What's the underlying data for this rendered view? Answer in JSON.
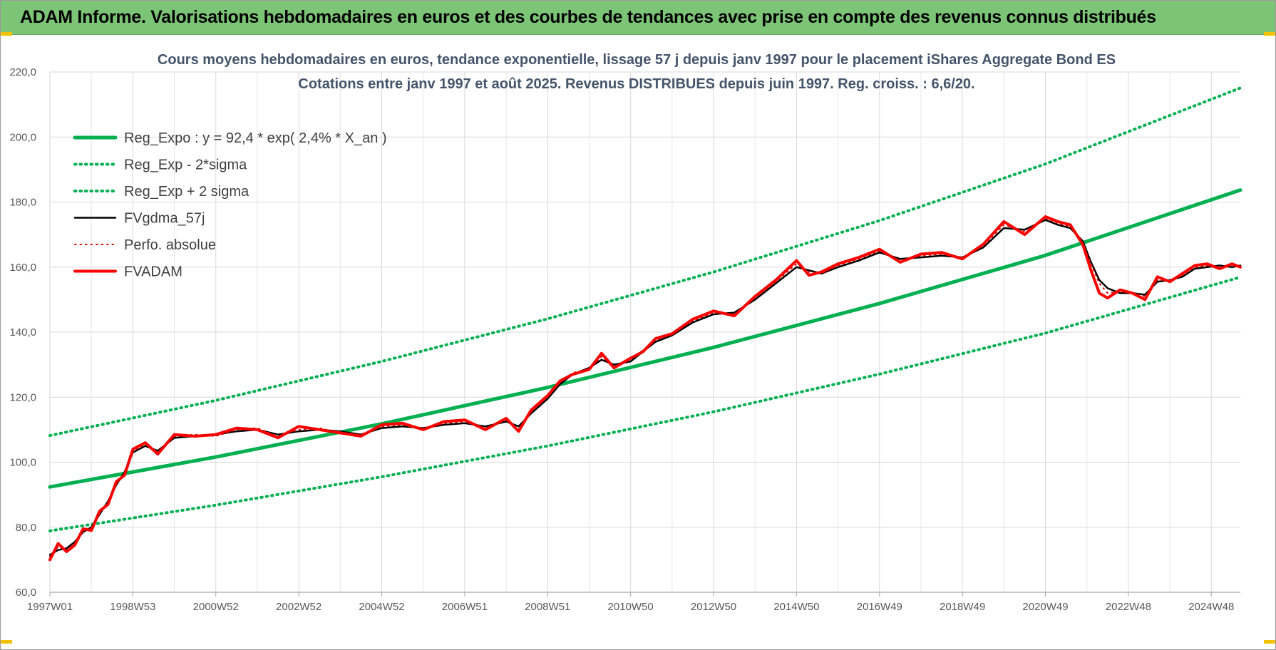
{
  "banner": {
    "title": "ADAM Informe. Valorisations hebdomadaires en euros et des courbes de tendances avec prise en compte des revenus connus distribués",
    "color": "#7cc576"
  },
  "chart_data": {
    "type": "line",
    "title": "Cours moyens hebdomadaires en euros, tendance exponentielle, lissage 57 j depuis janv 1997  pour le placement iShares Aggregate Bond ES",
    "subtitle": "Cotations entre janv 1997 et août 2025. Revenus DISTRIBUES depuis juin 1997.  Reg. croiss. : 6,6/20.",
    "x_range": [
      1997.0,
      2025.7
    ],
    "ylim": [
      60,
      220
    ],
    "y_ticks": [
      60,
      80,
      100,
      120,
      140,
      160,
      180,
      200,
      220
    ],
    "y_tick_labels": [
      "60,0",
      "80,0",
      "100,0",
      "120,0",
      "140,0",
      "160,0",
      "180,0",
      "200,0",
      "220,0"
    ],
    "x_tick_labels": [
      "1997W01",
      "1998W53",
      "2000W52",
      "2002W52",
      "2004W52",
      "2006W51",
      "2008W51",
      "2010W50",
      "2012W50",
      "2014W50",
      "2016W49",
      "2018W49",
      "2020W49",
      "2022W48",
      "2024W48"
    ],
    "x_tick_positions": [
      1997.0,
      1999.0,
      2001.0,
      2003.0,
      2005.0,
      2007.0,
      2009.0,
      2011.0,
      2013.0,
      2015.0,
      2017.0,
      2019.0,
      2021.0,
      2023.0,
      2025.0
    ],
    "grid": true,
    "legend_position": "top-left",
    "regression": {
      "a": 92.4,
      "rate": 0.024,
      "x0": 1997.0
    },
    "series": [
      {
        "name": "Reg_Expo : y = 92,4 * exp( 2,4% *  X_an )",
        "color": "#00b050",
        "style": "solid",
        "width": 5,
        "x": [
          1997.0,
          2001.0,
          2005.0,
          2009.0,
          2013.0,
          2017.0,
          2021.0,
          2025.7
        ],
        "values": [
          92.4,
          101.6,
          111.8,
          123.0,
          135.3,
          148.8,
          163.6,
          183.7
        ]
      },
      {
        "name": "Reg_Exp - 2*sigma",
        "color": "#00b050",
        "style": "dotted",
        "width": 4,
        "x": [
          1997.0,
          2001.0,
          2005.0,
          2009.0,
          2013.0,
          2017.0,
          2021.0,
          2025.7
        ],
        "values": [
          78.9,
          86.8,
          95.5,
          105.0,
          115.5,
          127.1,
          139.7,
          156.9
        ]
      },
      {
        "name": "Reg_Exp + 2 sigma",
        "color": "#00b050",
        "style": "dotted",
        "width": 4,
        "x": [
          1997.0,
          2001.0,
          2005.0,
          2009.0,
          2013.0,
          2017.0,
          2021.0,
          2025.7
        ],
        "values": [
          108.2,
          119.0,
          131.0,
          144.1,
          158.5,
          174.3,
          191.7,
          215.1
        ]
      },
      {
        "name": "FVgdma_57j",
        "color": "#000000",
        "style": "solid",
        "width": 2.5,
        "x": [
          1997.0,
          1997.2,
          1997.4,
          1997.6,
          1997.8,
          1998.0,
          1998.2,
          1998.4,
          1998.6,
          1998.8,
          1999.0,
          1999.3,
          1999.6,
          2000.0,
          2000.5,
          2001.0,
          2001.5,
          2002.0,
          2002.5,
          2003.0,
          2003.5,
          2004.0,
          2004.5,
          2005.0,
          2005.5,
          2006.0,
          2006.5,
          2007.0,
          2007.5,
          2008.0,
          2008.3,
          2008.6,
          2009.0,
          2009.3,
          2009.6,
          2010.0,
          2010.3,
          2010.6,
          2011.0,
          2011.3,
          2011.6,
          2012.0,
          2012.5,
          2013.0,
          2013.5,
          2014.0,
          2014.5,
          2015.0,
          2015.3,
          2015.6,
          2016.0,
          2016.5,
          2017.0,
          2017.5,
          2018.0,
          2018.5,
          2019.0,
          2019.5,
          2020.0,
          2020.5,
          2021.0,
          2021.3,
          2021.6,
          2021.9,
          2022.1,
          2022.3,
          2022.5,
          2022.8,
          2023.1,
          2023.4,
          2023.7,
          2024.0,
          2024.3,
          2024.6,
          2024.9,
          2025.2,
          2025.5,
          2025.7
        ],
        "values": [
          71.5,
          73.0,
          73.5,
          75.5,
          78.5,
          80.0,
          84.0,
          88.0,
          93.0,
          97.0,
          103.0,
          105.0,
          103.5,
          107.5,
          108.0,
          108.5,
          109.5,
          110.0,
          108.5,
          109.5,
          110.0,
          109.5,
          108.5,
          110.5,
          111.0,
          110.5,
          111.5,
          112.0,
          111.0,
          112.5,
          111.0,
          115.0,
          119.5,
          124.0,
          127.0,
          129.0,
          131.5,
          130.0,
          131.0,
          134.0,
          137.0,
          139.0,
          143.0,
          145.5,
          146.0,
          150.0,
          155.0,
          160.0,
          159.0,
          158.0,
          160.0,
          162.0,
          164.5,
          162.5,
          163.0,
          163.5,
          163.0,
          166.0,
          172.0,
          171.5,
          174.5,
          173.0,
          172.0,
          168.0,
          161.5,
          156.0,
          153.5,
          152.0,
          152.0,
          151.5,
          155.5,
          156.0,
          157.0,
          159.5,
          160.0,
          160.5,
          160.0,
          160.5
        ]
      },
      {
        "name": "Perfo. absolue",
        "color": "#e00000",
        "style": "dotted",
        "width": 2,
        "x": [
          1997.0,
          1997.2,
          1997.4,
          1997.6,
          1997.8,
          1998.0,
          1998.2,
          1998.4,
          1998.6,
          1998.8,
          1999.0,
          1999.3,
          1999.6,
          2000.0,
          2000.5,
          2001.0,
          2001.5,
          2002.0,
          2002.5,
          2003.0,
          2003.5,
          2004.0,
          2004.5,
          2005.0,
          2005.5,
          2006.0,
          2006.5,
          2007.0,
          2007.5,
          2008.0,
          2008.3,
          2008.6,
          2009.0,
          2009.3,
          2009.6,
          2010.0,
          2010.3,
          2010.6,
          2011.0,
          2011.3,
          2011.6,
          2012.0,
          2012.5,
          2013.0,
          2013.5,
          2014.0,
          2014.5,
          2015.0,
          2015.3,
          2015.6,
          2016.0,
          2016.5,
          2017.0,
          2017.5,
          2018.0,
          2018.5,
          2019.0,
          2019.5,
          2020.0,
          2020.5,
          2021.0,
          2021.3,
          2021.6,
          2021.9,
          2022.1,
          2022.3,
          2022.5,
          2022.8,
          2023.1,
          2023.4,
          2023.7,
          2024.0,
          2024.3,
          2024.6,
          2024.9,
          2025.2,
          2025.5,
          2025.7
        ],
        "values": [
          71.0,
          74.0,
          73.0,
          75.0,
          79.0,
          79.5,
          84.5,
          87.5,
          93.5,
          96.5,
          103.5,
          105.5,
          103.0,
          108.0,
          108.5,
          108.0,
          110.0,
          110.5,
          108.0,
          110.0,
          110.5,
          109.0,
          108.5,
          111.0,
          111.5,
          110.0,
          112.0,
          112.5,
          110.5,
          113.0,
          110.0,
          115.5,
          120.0,
          124.5,
          127.5,
          128.5,
          132.5,
          129.5,
          131.5,
          134.5,
          137.5,
          139.5,
          143.5,
          146.0,
          145.5,
          150.5,
          155.5,
          161.0,
          158.5,
          158.0,
          160.5,
          162.5,
          165.0,
          162.0,
          163.5,
          164.0,
          163.0,
          166.5,
          173.0,
          171.0,
          175.0,
          173.5,
          172.5,
          167.5,
          161.0,
          155.0,
          152.0,
          152.5,
          152.0,
          151.0,
          156.0,
          156.0,
          157.5,
          160.0,
          160.5,
          160.0,
          160.5,
          160.0
        ]
      },
      {
        "name": "FVADAM",
        "color": "#ff0000",
        "style": "solid",
        "width": 4,
        "x": [
          1997.0,
          1997.2,
          1997.4,
          1997.6,
          1997.8,
          1998.0,
          1998.2,
          1998.4,
          1998.6,
          1998.8,
          1999.0,
          1999.3,
          1999.6,
          2000.0,
          2000.5,
          2001.0,
          2001.5,
          2002.0,
          2002.5,
          2003.0,
          2003.5,
          2004.0,
          2004.5,
          2005.0,
          2005.5,
          2006.0,
          2006.5,
          2007.0,
          2007.5,
          2008.0,
          2008.3,
          2008.6,
          2009.0,
          2009.3,
          2009.6,
          2010.0,
          2010.3,
          2010.6,
          2011.0,
          2011.3,
          2011.6,
          2012.0,
          2012.5,
          2013.0,
          2013.5,
          2014.0,
          2014.5,
          2015.0,
          2015.3,
          2015.6,
          2016.0,
          2016.5,
          2017.0,
          2017.5,
          2018.0,
          2018.5,
          2019.0,
          2019.5,
          2020.0,
          2020.5,
          2021.0,
          2021.3,
          2021.6,
          2021.9,
          2022.1,
          2022.3,
          2022.5,
          2022.8,
          2023.1,
          2023.4,
          2023.7,
          2024.0,
          2024.3,
          2024.6,
          2024.9,
          2025.2,
          2025.5,
          2025.7
        ],
        "values": [
          70.0,
          75.0,
          72.5,
          74.5,
          79.5,
          79.0,
          85.0,
          87.0,
          94.0,
          96.0,
          104.0,
          106.0,
          102.5,
          108.5,
          108.0,
          108.5,
          110.5,
          110.0,
          107.5,
          111.0,
          110.0,
          109.0,
          108.0,
          111.5,
          112.0,
          110.0,
          112.5,
          113.0,
          110.0,
          113.5,
          109.5,
          116.0,
          120.5,
          125.0,
          127.0,
          128.5,
          133.5,
          129.0,
          132.0,
          134.0,
          138.0,
          139.5,
          144.0,
          146.5,
          145.0,
          151.0,
          156.0,
          162.0,
          157.5,
          158.5,
          161.0,
          163.0,
          165.5,
          161.5,
          164.0,
          164.5,
          162.5,
          167.0,
          174.0,
          170.0,
          175.5,
          174.0,
          173.0,
          167.0,
          159.0,
          152.0,
          150.5,
          153.0,
          152.0,
          150.0,
          157.0,
          155.5,
          158.0,
          160.5,
          161.0,
          159.5,
          161.0,
          160.0
        ]
      }
    ]
  }
}
